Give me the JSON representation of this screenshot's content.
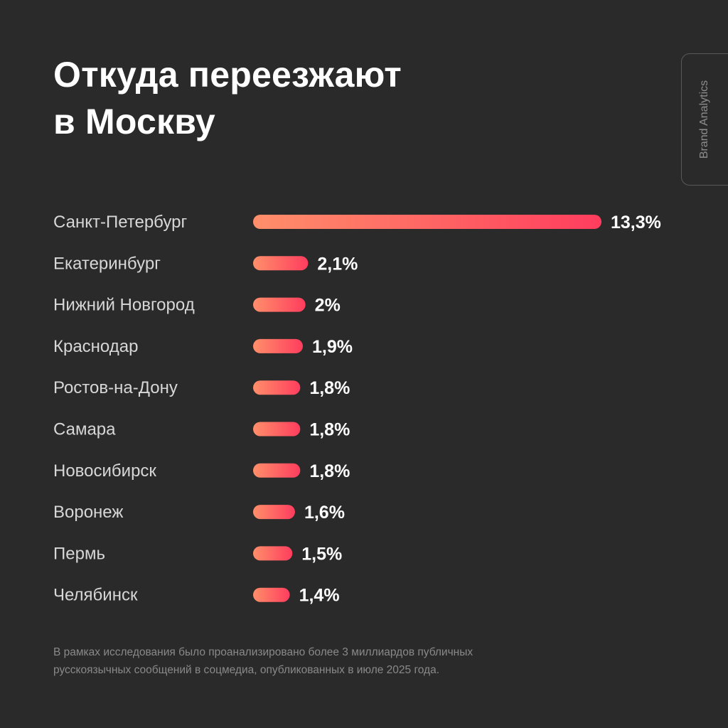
{
  "title": {
    "line1": "Откуда переезжают",
    "line2": "в Москву"
  },
  "brand": "Brand Analytics",
  "colors": {
    "background": "#2b2a2b",
    "bar_gradient_start": "#ff8f6a",
    "bar_gradient_end": "#ff3d5e",
    "text": "#ffffff",
    "label": "#d8d7d8"
  },
  "chart_data": {
    "type": "bar",
    "orientation": "horizontal",
    "categories": [
      "Санкт-Петербург",
      "Екатеринбург",
      "Нижний Новгород",
      "Краснодар",
      "Ростов-на-Дону",
      "Самара",
      "Новосибирск",
      "Воронеж",
      "Пермь",
      "Челябинск"
    ],
    "values": [
      13.3,
      2.1,
      2.0,
      1.9,
      1.8,
      1.8,
      1.8,
      1.6,
      1.5,
      1.4
    ],
    "value_labels": [
      "13,3%",
      "2,1%",
      "2%",
      "1,9%",
      "1,8%",
      "1,8%",
      "1,8%",
      "1,6%",
      "1,5%",
      "1,4%"
    ],
    "unit": "%",
    "grid": false,
    "legend": "none"
  },
  "footnote": {
    "line1": "В рамках исследования было проанализировано более 3 миллиардов публичных",
    "line2": "русскоязычных сообщений в соцмедиа, опубликованных в июле 2025 года."
  }
}
